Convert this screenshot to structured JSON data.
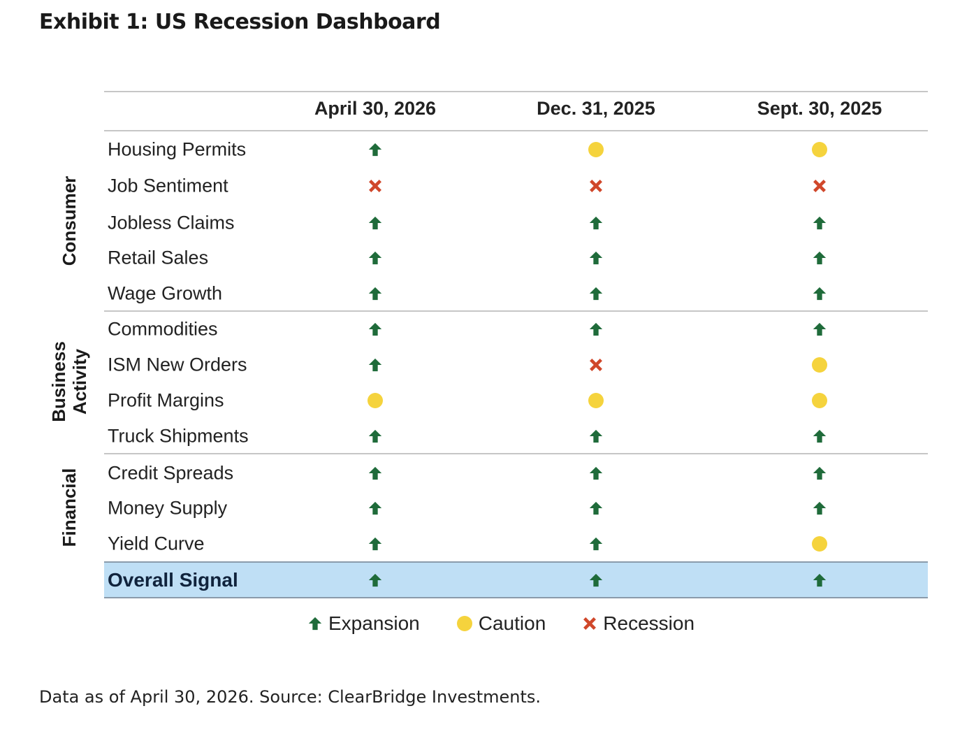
{
  "title": "Exhibit 1: US Recession Dashboard",
  "columns": [
    "April 30, 2026",
    "Dec. 31, 2025",
    "Sept. 30, 2025"
  ],
  "groups": [
    {
      "label_lines": [
        "Consumer"
      ]
    },
    {
      "label_lines": [
        "Business",
        "Activity"
      ]
    },
    {
      "label_lines": [
        "Financial"
      ]
    }
  ],
  "rows": [
    {
      "label": "Housing Permits",
      "signals": [
        "expansion",
        "caution",
        "caution"
      ]
    },
    {
      "label": "Job Sentiment",
      "signals": [
        "recession",
        "recession",
        "recession"
      ]
    },
    {
      "label": "Jobless Claims",
      "signals": [
        "expansion",
        "expansion",
        "expansion"
      ]
    },
    {
      "label": "Retail Sales",
      "signals": [
        "expansion",
        "expansion",
        "expansion"
      ]
    },
    {
      "label": "Wage Growth",
      "signals": [
        "expansion",
        "expansion",
        "expansion"
      ]
    },
    {
      "label": "Commodities",
      "signals": [
        "expansion",
        "expansion",
        "expansion"
      ]
    },
    {
      "label": "ISM New Orders",
      "signals": [
        "expansion",
        "recession",
        "caution"
      ]
    },
    {
      "label": "Profit Margins",
      "signals": [
        "caution",
        "caution",
        "caution"
      ]
    },
    {
      "label": "Truck Shipments",
      "signals": [
        "expansion",
        "expansion",
        "expansion"
      ]
    },
    {
      "label": "Credit Spreads",
      "signals": [
        "expansion",
        "expansion",
        "expansion"
      ]
    },
    {
      "label": "Money Supply",
      "signals": [
        "expansion",
        "expansion",
        "expansion"
      ]
    },
    {
      "label": "Yield Curve",
      "signals": [
        "expansion",
        "expansion",
        "caution"
      ]
    }
  ],
  "overall": {
    "label": "Overall Signal",
    "signals": [
      "expansion",
      "expansion",
      "expansion"
    ]
  },
  "legend": [
    {
      "key": "expansion",
      "label": "Expansion",
      "icon": "up-arrow-icon"
    },
    {
      "key": "caution",
      "label": "Caution",
      "icon": "yellow-dot-icon"
    },
    {
      "key": "recession",
      "label": "Recession",
      "icon": "red-x-icon"
    }
  ],
  "colors": {
    "expansion": "#1f6b3a",
    "caution": "#f5d33d",
    "recession": "#d0472a",
    "overall_bg": "#bfdff5"
  },
  "footnote": "Data as of April 30, 2026. Source: ClearBridge Investments."
}
